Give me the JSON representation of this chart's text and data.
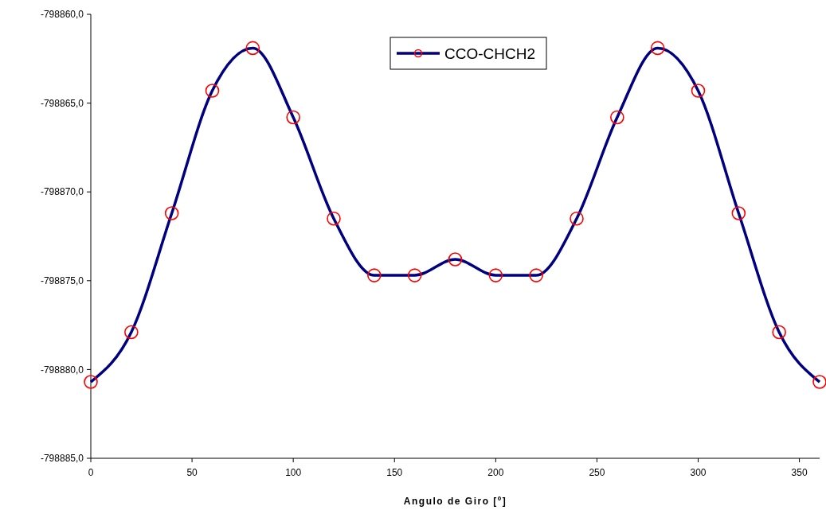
{
  "chart_data": {
    "type": "line",
    "xlabel": "Angulo de Giro [º]",
    "x": [
      0,
      20,
      40,
      60,
      80,
      100,
      120,
      140,
      160,
      180,
      200,
      220,
      240,
      260,
      280,
      300,
      320,
      340,
      360
    ],
    "series": [
      {
        "name": "CCO-CHCH2",
        "color": "#000080",
        "values": [
          -798880.7,
          -798877.9,
          -798871.2,
          -798864.3,
          -798861.9,
          -798865.8,
          -798871.5,
          -798874.7,
          -798874.7,
          -798873.8,
          -798874.7,
          -798874.7,
          -798871.5,
          -798865.8,
          -798861.9,
          -798864.3,
          -798871.2,
          -798877.9,
          -798880.7
        ]
      }
    ],
    "xlim": [
      0,
      360
    ],
    "xticks": [
      0,
      50,
      100,
      150,
      200,
      250,
      300,
      350
    ],
    "ylim": [
      -798885,
      -798860
    ],
    "yticks": [
      {
        "value": -798885,
        "label": "-798885,0"
      },
      {
        "value": -798880,
        "label": "-798880,0"
      },
      {
        "value": -798875,
        "label": "-798875,0"
      },
      {
        "value": -798870,
        "label": "-798870,0"
      },
      {
        "value": -798865,
        "label": "-798865,0"
      },
      {
        "value": -798860,
        "label": "-798860,0"
      }
    ],
    "marker": "circle",
    "line_style": "solid",
    "legend": "top",
    "grid": false
  }
}
